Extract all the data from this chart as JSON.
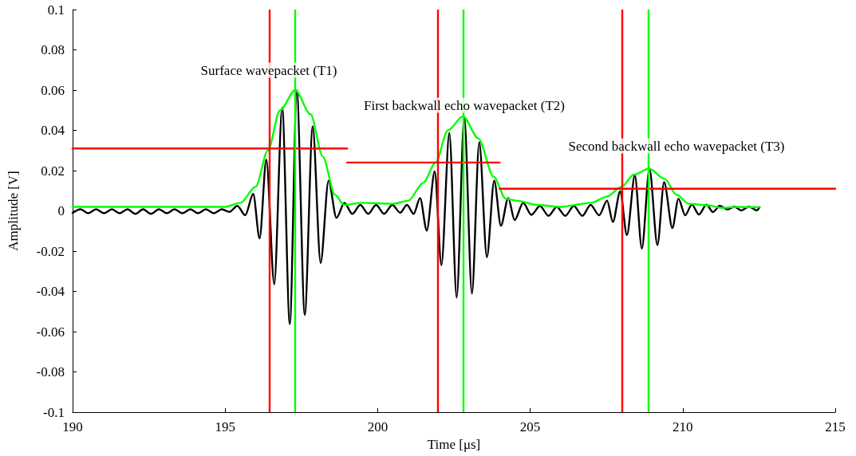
{
  "chart_data": {
    "type": "line",
    "xlabel": "Time [μs]",
    "ylabel": "Amplitude [V]",
    "xlim": [
      190,
      215
    ],
    "xticks": [
      190,
      195,
      200,
      205,
      210,
      215
    ],
    "ylim": [
      -0.1,
      0.1
    ],
    "yticks": [
      -0.1,
      -0.08,
      -0.06,
      -0.04,
      -0.02,
      0,
      0.02,
      0.04,
      0.06,
      0.08,
      0.1
    ],
    "grid": false,
    "marker": "none",
    "line_style": "solid",
    "series": [
      {
        "color": "#000000",
        "x": [
          190.0,
          190.26,
          190.51,
          190.77,
          191.03,
          191.29,
          191.54,
          191.8,
          192.06,
          192.31,
          192.57,
          192.83,
          193.09,
          193.34,
          193.6,
          193.86,
          194.11,
          194.37,
          194.63,
          194.89,
          195.14,
          195.4,
          195.66,
          195.92,
          196.13,
          196.35,
          196.61,
          196.87,
          197.12,
          197.35,
          197.61,
          197.87,
          198.13,
          198.39,
          198.65,
          198.91,
          199.17,
          199.43,
          199.69,
          199.95,
          200.21,
          200.48,
          200.74,
          200.96,
          201.18,
          201.39,
          201.61,
          201.87,
          202.09,
          202.35,
          202.59,
          202.84,
          203.09,
          203.33,
          203.58,
          203.82,
          204.04,
          204.28,
          204.49,
          204.77,
          205.04,
          205.32,
          205.6,
          205.87,
          206.15,
          206.43,
          206.71,
          206.98,
          207.26,
          207.52,
          207.71,
          207.95,
          208.17,
          208.43,
          208.66,
          208.91,
          209.17,
          209.39,
          209.66,
          209.86,
          210.08,
          210.3,
          210.53,
          210.78,
          210.99,
          211.21,
          211.47,
          211.69,
          211.92,
          212.17,
          212.43,
          212.52
        ],
        "values": [
          -0.001,
          0.0008,
          -0.0012,
          0.0008,
          -0.0012,
          0.0008,
          -0.0012,
          0.0008,
          -0.0015,
          0.0008,
          -0.0015,
          0.0008,
          -0.0012,
          0.0008,
          -0.0012,
          0.0008,
          -0.0012,
          0.0008,
          -0.0012,
          0.0008,
          -0.0005,
          0.0025,
          -0.0022,
          0.0084,
          -0.0137,
          0.0255,
          -0.0365,
          0.0513,
          -0.0563,
          0.0599,
          -0.0517,
          0.042,
          -0.0259,
          0.015,
          -0.0035,
          0.004,
          -0.0015,
          0.003,
          -0.0015,
          0.003,
          -0.0015,
          0.003,
          -0.0009,
          0.003,
          -0.0015,
          0.0064,
          -0.0098,
          0.0196,
          -0.027,
          0.0387,
          -0.0431,
          0.0467,
          -0.0411,
          0.0341,
          -0.023,
          0.015,
          -0.0074,
          0.0064,
          -0.0046,
          0.004,
          -0.002,
          0.0025,
          -0.0025,
          0.002,
          -0.0025,
          0.0025,
          -0.0025,
          0.003,
          -0.0022,
          0.0051,
          -0.0055,
          0.0097,
          -0.0121,
          0.0176,
          -0.0187,
          0.0209,
          -0.017,
          0.0143,
          -0.0085,
          0.006,
          -0.0022,
          0.0031,
          -0.0018,
          0.0031,
          -0.0006,
          0.0025,
          0.0007,
          0.0021,
          0.0002,
          0.0021,
          0.0002,
          0.0018
        ]
      },
      {
        "color": "#00ff00",
        "x": [
          190,
          195,
          195.5,
          196,
          196.4,
          196.8,
          197.3,
          197.8,
          198.2,
          198.6,
          198.9,
          199.5,
          200.5,
          201,
          201.5,
          201.9,
          202.3,
          202.8,
          203.3,
          203.8,
          204.2,
          204.6,
          205.2,
          206,
          207,
          207.5,
          208,
          208.4,
          208.9,
          209.4,
          209.8,
          210.2,
          210.8,
          211.3,
          211.8,
          212.5
        ],
        "values": [
          0.002,
          0.002,
          0.004,
          0.012,
          0.03,
          0.05,
          0.06,
          0.048,
          0.027,
          0.008,
          0.003,
          0.004,
          0.0035,
          0.005,
          0.014,
          0.024,
          0.04,
          0.047,
          0.036,
          0.017,
          0.006,
          0.005,
          0.003,
          0.002,
          0.004,
          0.007,
          0.012,
          0.018,
          0.021,
          0.016,
          0.008,
          0.0035,
          0.0028,
          0.0015,
          0.002,
          0.0018
        ]
      },
      {
        "color": "#ff0000",
        "x": [
          190,
          199
        ],
        "values": [
          0.031,
          0.031
        ]
      },
      {
        "color": "#ff0000",
        "x": [
          199,
          204
        ],
        "values": [
          0.024,
          0.024
        ]
      },
      {
        "color": "#ff0000",
        "x": [
          204,
          215
        ],
        "values": [
          0.011,
          0.011
        ]
      }
    ],
    "ref_lines": [
      {
        "axis": "x",
        "value": 196.46,
        "color": "#ff0000"
      },
      {
        "axis": "x",
        "value": 197.29,
        "color": "#00ff00"
      },
      {
        "axis": "x",
        "value": 201.97,
        "color": "#ff0000"
      },
      {
        "axis": "x",
        "value": 202.81,
        "color": "#00ff00"
      },
      {
        "axis": "x",
        "value": 208.01,
        "color": "#ff0000"
      },
      {
        "axis": "x",
        "value": 208.87,
        "color": "#00ff00"
      }
    ],
    "annotations": [
      "Surface wavepacket (T1)",
      "First backwall echo wavepacket (T2)",
      "Second backwall echo wavepacket (T3)"
    ]
  }
}
